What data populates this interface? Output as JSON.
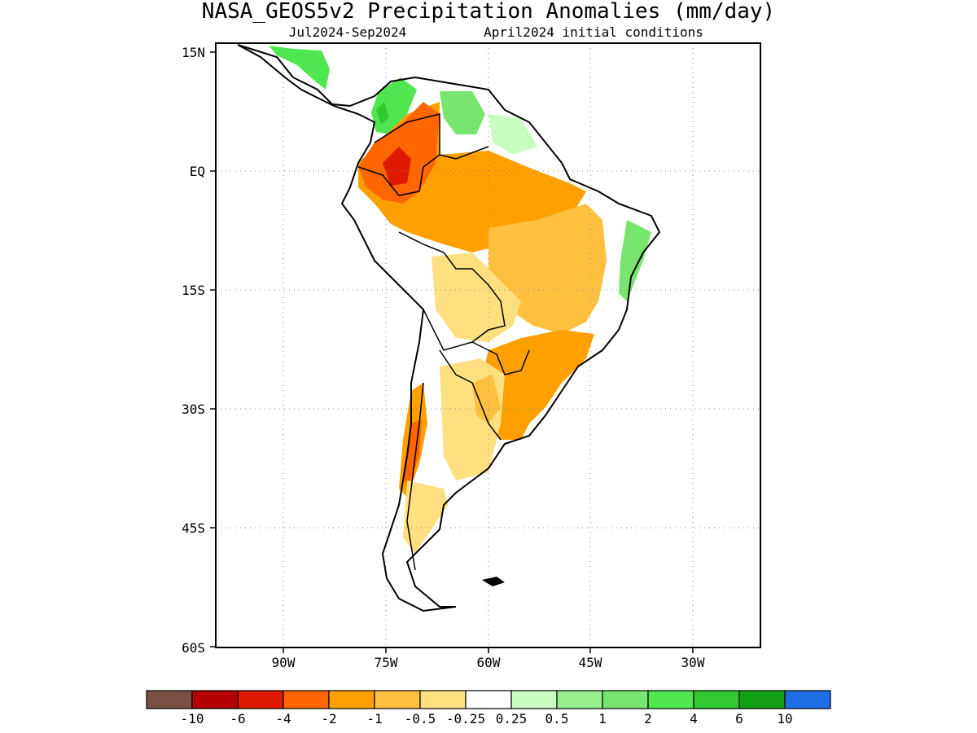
{
  "title": "NASA_GEOS5v2 Precipitation Anomalies (mm/day)",
  "subtitle_period": "Jul2024-Sep2024",
  "subtitle_init": "April2024 initial conditions",
  "lat_labels": [
    "15N",
    "EQ",
    "15S",
    "30S",
    "45S",
    "60S"
  ],
  "lon_labels": [
    "90W",
    "75W",
    "60W",
    "45W",
    "30W"
  ],
  "colorbar": {
    "colors": [
      "#7a5045",
      "#b40000",
      "#e01a00",
      "#ff6600",
      "#ffa000",
      "#ffc040",
      "#ffe080",
      "#ffffff",
      "#c8ffc0",
      "#96f08c",
      "#78e66e",
      "#50e650",
      "#32c832",
      "#14a014",
      "#1e6ee6"
    ],
    "labels": [
      "-10",
      "-6",
      "-4",
      "-2",
      "-1",
      "-0.5",
      "-0.25",
      "0.25",
      "0.5",
      "1",
      "2",
      "4",
      "6",
      "10"
    ]
  }
}
